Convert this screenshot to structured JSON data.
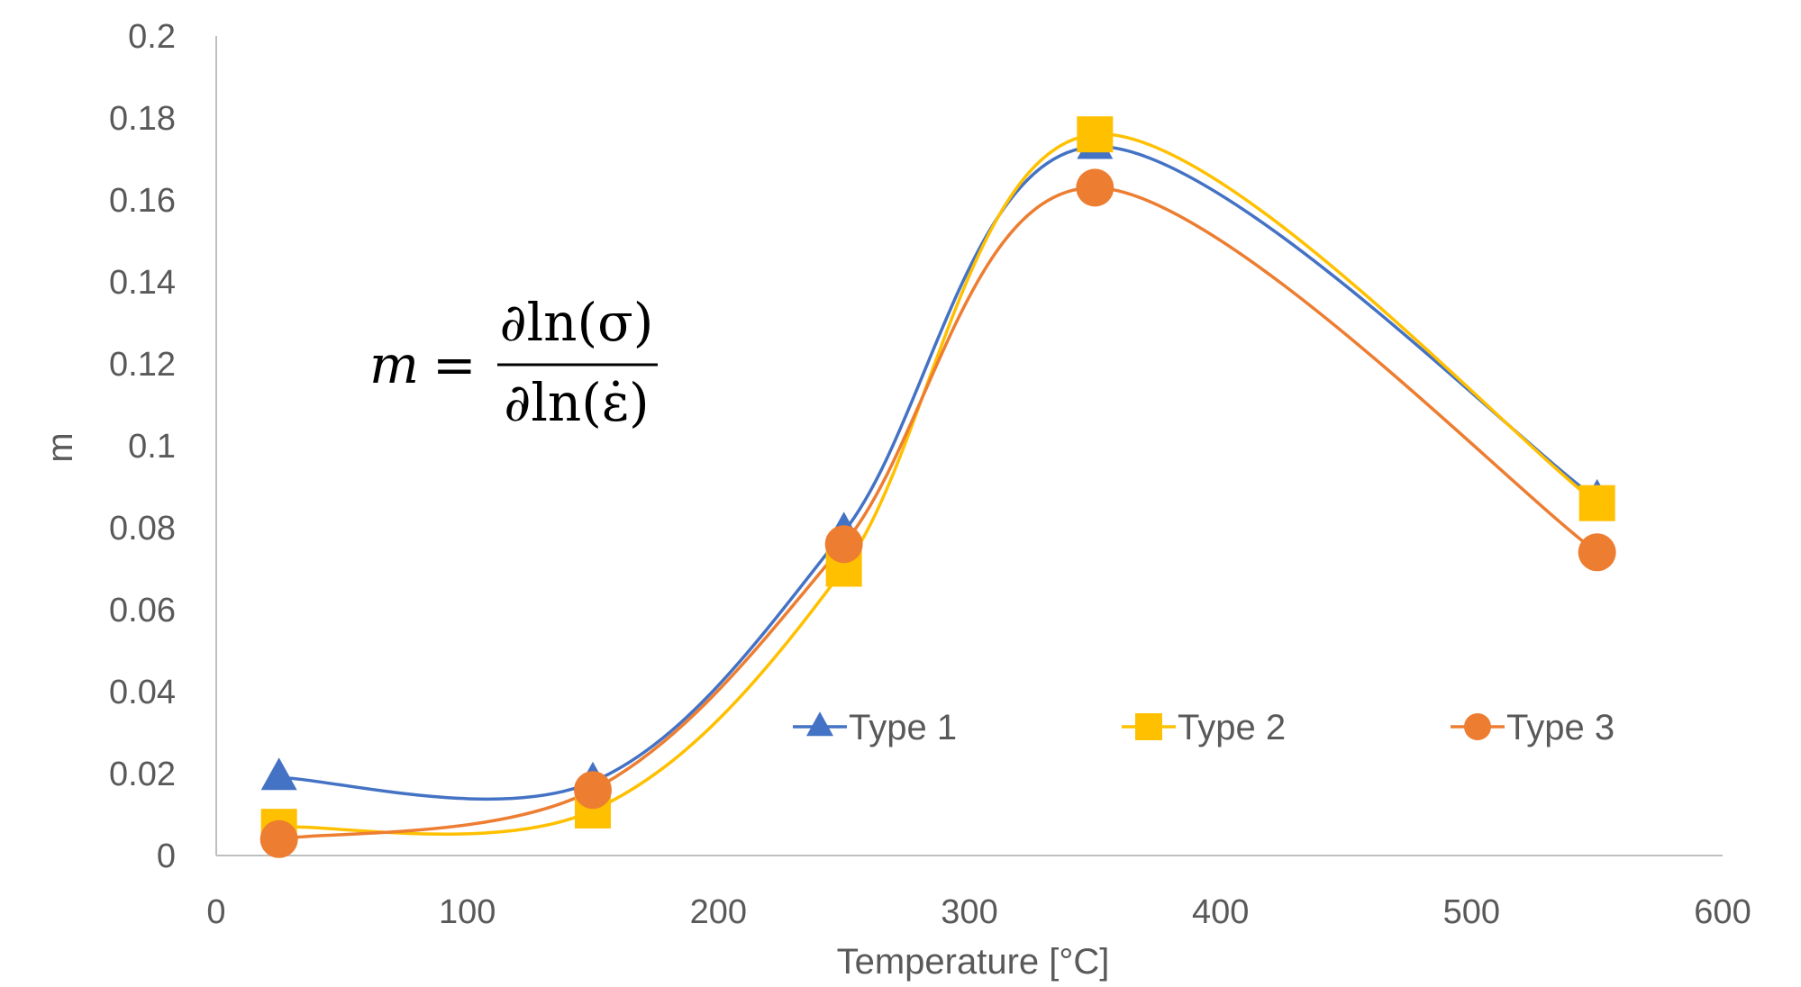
{
  "chart_data": {
    "type": "line",
    "smooth": true,
    "title": "",
    "xlabel": "Temperature [°C]",
    "ylabel": "m",
    "xlim": [
      0,
      600
    ],
    "ylim": [
      0,
      0.2
    ],
    "xticks": [
      0,
      100,
      200,
      300,
      400,
      500,
      600
    ],
    "yticks": [
      0,
      0.02,
      0.04,
      0.06,
      0.08,
      0.1,
      0.12,
      0.14,
      0.16,
      0.18,
      0.2
    ],
    "grid": false,
    "legend_position": "inside-bottom-right",
    "annotation": {
      "lhs": "m",
      "equals": "=",
      "numerator": "∂ln(σ)",
      "denominator": "∂ln(ε̇)"
    },
    "series": [
      {
        "name": "Type 1",
        "color": "#4472C4",
        "marker": "triangle",
        "x": [
          25,
          150,
          250,
          350,
          550
        ],
        "y": [
          0.019,
          0.018,
          0.079,
          0.173,
          0.087
        ]
      },
      {
        "name": "Type 2",
        "color": "#FFC000",
        "marker": "square",
        "x": [
          25,
          150,
          250,
          350,
          550
        ],
        "y": [
          0.007,
          0.011,
          0.07,
          0.176,
          0.086
        ]
      },
      {
        "name": "Type 3",
        "color": "#ED7D31",
        "marker": "circle",
        "x": [
          25,
          150,
          250,
          350,
          550
        ],
        "y": [
          0.004,
          0.016,
          0.076,
          0.163,
          0.074
        ]
      }
    ]
  }
}
